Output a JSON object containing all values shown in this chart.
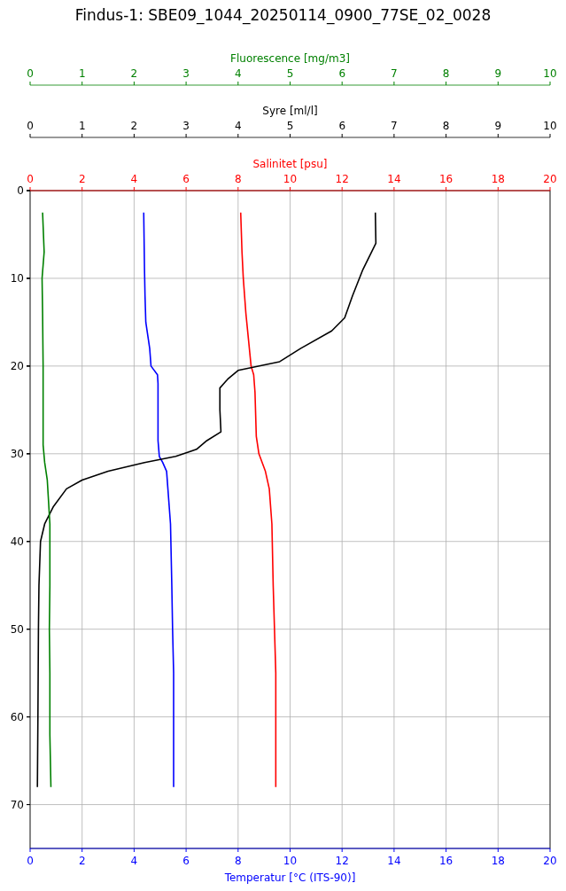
{
  "chart_data": [
    {
      "type": "line",
      "title": "Findus-1: SBE09_1044_20250114_0900_77SE_02_0028",
      "xlabel": "Temperatur [°C (ITS-90)]",
      "x2label": "Salinitet [psu]",
      "xlim": [
        0,
        20
      ],
      "xticks": [
        0,
        2,
        4,
        6,
        8,
        10,
        12,
        14,
        16,
        18,
        20
      ],
      "x2lim": [
        0,
        20
      ],
      "x2ticks": [
        0,
        2,
        4,
        6,
        8,
        10,
        12,
        14,
        16,
        18,
        20
      ],
      "ylim": [
        75,
        0
      ],
      "yticks": [
        0,
        10,
        20,
        30,
        40,
        50,
        60,
        70
      ],
      "grid": true,
      "series": [
        {
          "color": "#0000ff",
          "x": [
            4.37,
            4.4,
            4.42,
            4.45,
            4.55,
            4.6,
            4.65,
            4.9,
            4.92,
            4.92,
            4.92,
            4.97,
            5.1,
            5.25,
            5.3,
            5.4,
            5.45,
            5.48,
            5.52,
            5.52,
            5.52
          ],
          "values": [
            2.5,
            9,
            12,
            15,
            17,
            18,
            20,
            21,
            22,
            25,
            28.5,
            30.3,
            31,
            32,
            34,
            38,
            45,
            50,
            55,
            60,
            68
          ]
        },
        {
          "color": "#ff0000",
          "axis": "x2",
          "x": [
            8.1,
            8.15,
            8.2,
            8.25,
            8.3,
            8.4,
            8.5,
            8.6,
            8.65,
            8.7,
            8.8,
            9.05,
            9.2,
            9.3,
            9.35,
            9.4,
            9.45,
            9.45
          ],
          "values": [
            2.5,
            7,
            10,
            12,
            14,
            17,
            20,
            21,
            23,
            28,
            30,
            32,
            34,
            38,
            45,
            50,
            55,
            68
          ]
        }
      ]
    },
    {
      "type": "line",
      "xlabel": "Syre [ml/l]",
      "xlim": [
        0,
        10
      ],
      "xticks": [
        0,
        1,
        2,
        3,
        4,
        5,
        6,
        7,
        8,
        9,
        10
      ],
      "ylim": [
        75,
        0
      ],
      "yticks": [
        0,
        10,
        20,
        30,
        40,
        50,
        60,
        70
      ],
      "tick_labels": "x",
      "series": [
        {
          "color": "#000000",
          "x": [
            6.64,
            6.65,
            6.4,
            6.2,
            6.05,
            5.8,
            5.2,
            4.8,
            4.0,
            3.8,
            3.65,
            3.65,
            3.65,
            3.67,
            3.4,
            3.2,
            2.8,
            2.2,
            1.5,
            1.0,
            0.7,
            0.45,
            0.28,
            0.2,
            0.17,
            0.16,
            0.15,
            0.14
          ],
          "values": [
            2.5,
            6,
            9,
            12,
            14.5,
            16,
            18,
            19.5,
            20.5,
            21.5,
            22.5,
            24,
            25,
            27.5,
            28.5,
            29.5,
            30.3,
            31,
            32,
            33,
            34,
            36,
            38,
            40,
            45,
            50,
            60,
            68
          ]
        }
      ]
    },
    {
      "type": "line",
      "xlabel": "Fluorescence [mg/m3]",
      "xlim": [
        0,
        10
      ],
      "xticks": [
        0,
        1,
        2,
        3,
        4,
        5,
        6,
        7,
        8,
        9,
        10
      ],
      "ylim": [
        75,
        0
      ],
      "yticks": [
        0,
        10,
        20,
        30,
        40,
        50,
        60,
        70
      ],
      "tick_labels": "x",
      "series": [
        {
          "color": "#008000",
          "x": [
            0.24,
            0.27,
            0.23,
            0.24,
            0.25,
            0.25,
            0.25,
            0.28,
            0.33,
            0.35,
            0.38,
            0.38,
            0.37,
            0.38,
            0.38,
            0.4
          ],
          "values": [
            2.5,
            7,
            10,
            14,
            20,
            26,
            29,
            31,
            33,
            35,
            38,
            45,
            50,
            55,
            62,
            68
          ]
        }
      ]
    }
  ]
}
